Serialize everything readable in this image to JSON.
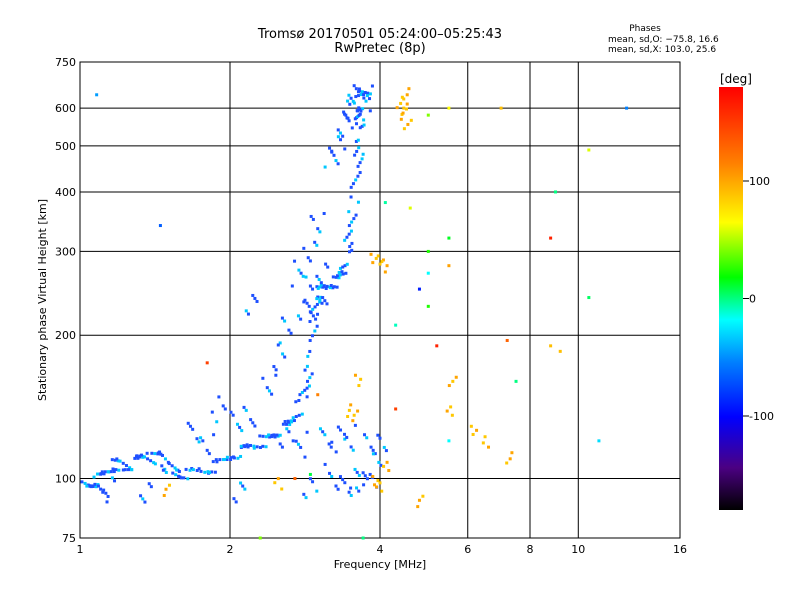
{
  "chart_data": {
    "type": "scatter",
    "title": "Tromsø 20170501 05:24:00–05:25:43",
    "subtitle": "RwPretec (8p)",
    "phase_header": "Phases",
    "phase_stats": [
      "mean, sd,O: −75.8, 16.6",
      "mean, sd,X: 103.0, 25.6"
    ],
    "xlabel": "Frequency [MHz]",
    "ylabel": "Stationary phase Virtual Height [km]",
    "x_scale": "log",
    "y_scale": "log",
    "xlim": [
      1,
      16
    ],
    "ylim": [
      75,
      750
    ],
    "x_ticks": [
      1,
      2,
      4,
      6,
      8,
      10,
      16
    ],
    "y_ticks": [
      75,
      100,
      200,
      300,
      400,
      500,
      600,
      750
    ],
    "grid": true,
    "colorbar": {
      "label": "[deg]",
      "range": [
        -180,
        180
      ],
      "ticks": [
        100,
        0,
        -100
      ]
    },
    "o_trace": [
      [
        1.0,
        97
      ],
      [
        1.04,
        96
      ],
      [
        1.08,
        99
      ],
      [
        1.12,
        102
      ],
      [
        1.16,
        106
      ],
      [
        1.2,
        108
      ],
      [
        1.25,
        105
      ],
      [
        1.3,
        109
      ],
      [
        1.35,
        112
      ],
      [
        1.4,
        110
      ],
      [
        1.45,
        113
      ],
      [
        1.5,
        106
      ],
      [
        1.55,
        103
      ],
      [
        1.6,
        102
      ],
      [
        1.7,
        103
      ],
      [
        1.8,
        104
      ],
      [
        1.9,
        107
      ],
      [
        2.0,
        111
      ],
      [
        2.1,
        114
      ],
      [
        2.2,
        117
      ],
      [
        2.3,
        119
      ],
      [
        2.4,
        122
      ],
      [
        2.5,
        125
      ],
      [
        2.6,
        129
      ],
      [
        2.7,
        135
      ],
      [
        2.8,
        145
      ],
      [
        2.85,
        160
      ],
      [
        2.9,
        185
      ],
      [
        2.95,
        220
      ],
      [
        3.0,
        245
      ],
      [
        3.1,
        252
      ],
      [
        3.2,
        256
      ],
      [
        3.3,
        262
      ],
      [
        3.4,
        278
      ],
      [
        3.45,
        300
      ],
      [
        3.5,
        340
      ],
      [
        3.55,
        390
      ],
      [
        3.6,
        450
      ],
      [
        3.63,
        520
      ],
      [
        3.65,
        560
      ],
      [
        3.6,
        600
      ],
      [
        3.7,
        640
      ],
      [
        3.8,
        650
      ]
    ],
    "o_cluster": [
      [
        3.2,
        480
      ],
      [
        3.3,
        500
      ],
      [
        3.4,
        540
      ],
      [
        3.45,
        580
      ],
      [
        3.5,
        620
      ],
      [
        3.55,
        640
      ],
      [
        3.7,
        610
      ],
      [
        3.75,
        630
      ],
      [
        2.9,
        250
      ],
      [
        3.0,
        230
      ],
      [
        3.05,
        270
      ],
      [
        3.1,
        240
      ],
      [
        2.75,
        270
      ],
      [
        2.8,
        230
      ],
      [
        2.9,
        300
      ],
      [
        3.0,
        340
      ],
      [
        2.6,
        205
      ],
      [
        2.5,
        180
      ],
      [
        2.4,
        160
      ],
      [
        2.2,
        135
      ],
      [
        2.05,
        130
      ],
      [
        1.9,
        140
      ],
      [
        1.8,
        120
      ],
      [
        1.7,
        125
      ],
      [
        3.1,
        120
      ],
      [
        3.3,
        121
      ],
      [
        3.5,
        122
      ],
      [
        3.8,
        120
      ],
      [
        4.0,
        118
      ],
      [
        2.6,
        120
      ],
      [
        2.8,
        118
      ],
      [
        3.4,
        98
      ],
      [
        3.6,
        100
      ],
      [
        3.7,
        97
      ],
      [
        3.9,
        102
      ],
      [
        3.2,
        101
      ],
      [
        2.9,
        97
      ],
      [
        1.15,
        96
      ],
      [
        1.35,
        92
      ],
      [
        1.1,
        95
      ],
      [
        2.1,
        95
      ],
      [
        2.2,
        232
      ]
    ],
    "x_trace": [
      [
        4.5,
        600
      ],
      [
        4.45,
        580
      ],
      [
        4.4,
        620
      ],
      [
        4.5,
        640
      ],
      [
        4.55,
        560
      ],
      [
        3.9,
        290
      ],
      [
        4.0,
        285
      ],
      [
        4.1,
        280
      ],
      [
        3.6,
        160
      ],
      [
        3.55,
        140
      ],
      [
        3.5,
        135
      ],
      [
        3.9,
        100
      ],
      [
        4.0,
        96
      ],
      [
        4.1,
        105
      ],
      [
        2.5,
        98
      ],
      [
        1.5,
        94
      ],
      [
        6.5,
        120
      ],
      [
        7.3,
        110
      ],
      [
        5.5,
        140
      ],
      [
        5.6,
        160
      ],
      [
        6.2,
        125
      ],
      [
        4.8,
        90
      ]
    ],
    "scattered": [
      [
        1.08,
        640,
        -90
      ],
      [
        1.45,
        340,
        -110
      ],
      [
        5.0,
        580,
        60
      ],
      [
        5.5,
        600,
        100
      ],
      [
        7.0,
        600,
        120
      ],
      [
        9.0,
        400,
        -20
      ],
      [
        8.8,
        320,
        170
      ],
      [
        10.5,
        490,
        90
      ],
      [
        12.5,
        600,
        -100
      ],
      [
        10.5,
        240,
        -10
      ],
      [
        5.0,
        230,
        30
      ],
      [
        5.0,
        270,
        -60
      ],
      [
        4.8,
        250,
        -130
      ],
      [
        5.5,
        320,
        10
      ],
      [
        5.5,
        280,
        130
      ],
      [
        5.0,
        300,
        30
      ],
      [
        4.6,
        370,
        90
      ],
      [
        4.1,
        380,
        -30
      ],
      [
        4.3,
        210,
        -40
      ],
      [
        3.7,
        480,
        -80
      ],
      [
        5.5,
        120,
        -60
      ],
      [
        5.2,
        190,
        170
      ],
      [
        7.2,
        195,
        150
      ],
      [
        8.8,
        190,
        120
      ],
      [
        9.2,
        185,
        120
      ],
      [
        7.5,
        160,
        -20
      ],
      [
        11,
        120,
        -70
      ],
      [
        4.3,
        140,
        160
      ],
      [
        3.0,
        150,
        140
      ],
      [
        1.8,
        175,
        160
      ],
      [
        2.3,
        75,
        60
      ],
      [
        2.7,
        100,
        150
      ],
      [
        2.9,
        102,
        0
      ],
      [
        3.7,
        75,
        -20
      ]
    ]
  }
}
